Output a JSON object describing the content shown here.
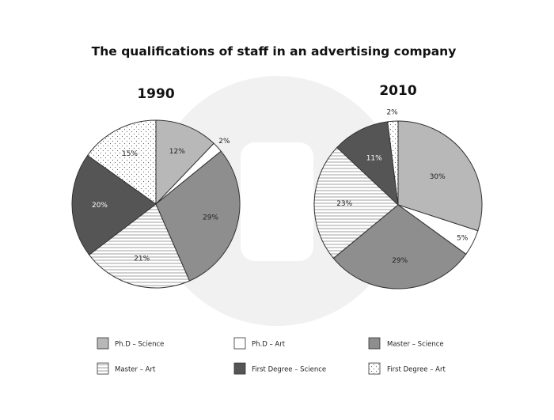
{
  "colors": {
    "phd_science": "#b8b8b8",
    "phd_art": "#ffffff",
    "master_science": "#8e8e8e",
    "master_art": "#ffffff",
    "first_science": "#555555",
    "first_art": "#ffffff",
    "stroke": "#333333",
    "watermark": "#f1f1f1"
  },
  "chart_data": {
    "type": "pie",
    "title": "The qualifications of staff in an advertising company",
    "categories": [
      "Ph.D – Science",
      "Ph.D – Art",
      "Master – Science",
      "Master – Art",
      "First Degree – Science",
      "First Degree – Art"
    ],
    "patterns": [
      "solid-light-gray",
      "white",
      "solid-mid-gray",
      "horizontal-lines",
      "solid-dark-gray",
      "dots"
    ],
    "legend_position": "bottom",
    "series": [
      {
        "name": "1990",
        "values": [
          12,
          2,
          29,
          21,
          20,
          15
        ],
        "labels": [
          "12%",
          "2%",
          "29%",
          "21%",
          "20%",
          "15%"
        ]
      },
      {
        "name": "2010",
        "values": [
          30,
          5,
          29,
          23,
          11,
          2
        ],
        "labels": [
          "30%",
          "5%",
          "29%",
          "23%",
          "11%",
          "2%"
        ]
      }
    ]
  }
}
